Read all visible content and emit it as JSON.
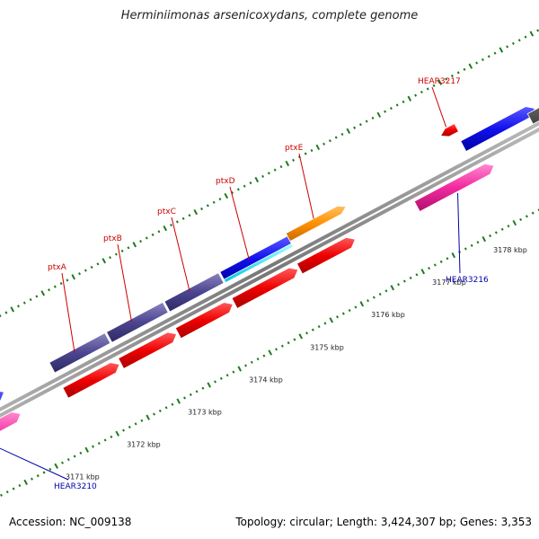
{
  "title": "Herminiimonas arsenicoxydans, complete genome",
  "footer": {
    "accession": "Accession: NC_009138",
    "summary": "Topology: circular; Length: 3,424,307 bp; Genes: 3,353"
  },
  "colors": {
    "backbone": "#8a8a8a",
    "tick": "#1e7a1e",
    "label_red": "#cc0000",
    "label_blue": "#0000aa"
  },
  "scale": {
    "unit": "kbp",
    "ticks": [
      3171,
      3172,
      3173,
      3174,
      3175,
      3176,
      3177,
      3178
    ]
  },
  "genes": [
    {
      "name": "ptxA",
      "color": "red"
    },
    {
      "name": "ptxB",
      "color": "red"
    },
    {
      "name": "ptxC",
      "color": "red"
    },
    {
      "name": "ptxD",
      "color": "red"
    },
    {
      "name": "ptxE",
      "color": "red"
    },
    {
      "name": "HEAR3217",
      "color": "red"
    },
    {
      "name": "HEAR3216",
      "color": "blue"
    },
    {
      "name": "HEAR3210",
      "color": "blue"
    }
  ]
}
